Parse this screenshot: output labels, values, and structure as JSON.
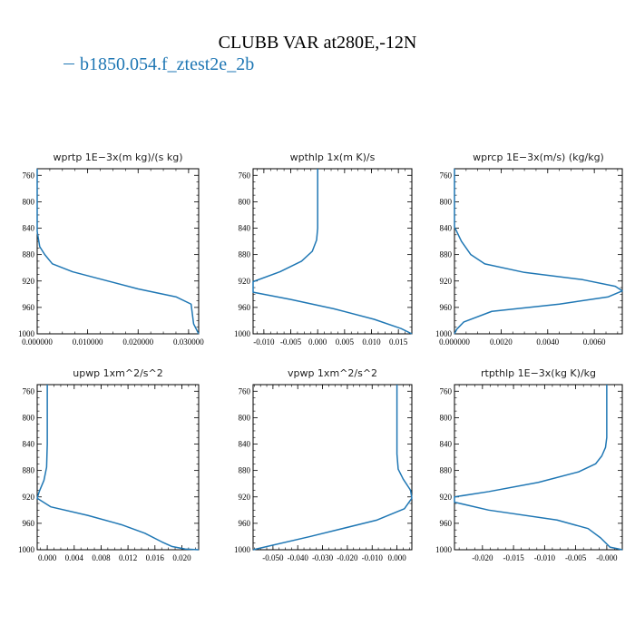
{
  "title": "CLUBB VAR at280E,-12N",
  "legend": [
    {
      "label": "b1850.054.f_ztest2e_2b",
      "color": "#1f77b4"
    }
  ],
  "chart_data": [
    {
      "type": "line",
      "title": "wprtp  1E−3x(m kg)/(s kg)",
      "xlim": [
        0,
        0.032
      ],
      "xticks": [
        0,
        0.01,
        0.02,
        0.03
      ],
      "xtick_labels": [
        "0.000000",
        "0.010000",
        "0.020000",
        "0.030000"
      ],
      "ylim": [
        1000,
        750
      ],
      "yticks": [
        760,
        800,
        840,
        880,
        920,
        960,
        1000
      ],
      "ytick_labels": [
        "760",
        "800",
        "840",
        "880",
        "920",
        "960",
        "1000"
      ],
      "series": [
        {
          "x": [
            0,
            0,
            0.0005,
            0.0015,
            0.003,
            0.007,
            0.013,
            0.02,
            0.0275,
            0.0305,
            0.031,
            0.032
          ],
          "y": [
            750,
            845,
            868,
            880,
            894,
            906,
            918,
            932,
            944,
            955,
            985,
            1000
          ]
        }
      ]
    },
    {
      "type": "line",
      "title": "wpthlp  1x(m K)/s",
      "xlim": [
        -0.012,
        0.0175
      ],
      "xticks": [
        -0.01,
        -0.005,
        0,
        0.005,
        0.01,
        0.015
      ],
      "xtick_labels": [
        "-0.010",
        "-0.005",
        "0.000",
        "0.005",
        "0.010",
        "0.015"
      ],
      "ylim": [
        1000,
        750
      ],
      "yticks": [
        760,
        800,
        840,
        880,
        920,
        960,
        1000
      ],
      "ytick_labels": [
        "760",
        "800",
        "840",
        "880",
        "920",
        "960",
        "1000"
      ],
      "series": [
        {
          "x": [
            0,
            0,
            -0.0002,
            -0.001,
            -0.003,
            -0.007,
            -0.012,
            -0.012,
            -0.005,
            0.003,
            0.0105,
            0.0155,
            0.0175
          ],
          "y": [
            750,
            840,
            858,
            875,
            890,
            906,
            921,
            937,
            948,
            962,
            978,
            992,
            1000
          ]
        }
      ]
    },
    {
      "type": "line",
      "title": "wprcp  1E−3x(m/s) (kg/kg)",
      "xlim": [
        0,
        0.0072
      ],
      "xticks": [
        0,
        0.002,
        0.004,
        0.006
      ],
      "xtick_labels": [
        "0.000000",
        "0.0020",
        "0.0040",
        "0.0060"
      ],
      "ylim": [
        1000,
        750
      ],
      "yticks": [
        760,
        800,
        840,
        880,
        920,
        960,
        1000
      ],
      "ytick_labels": [
        "760",
        "800",
        "840",
        "880",
        "920",
        "960",
        "1000"
      ],
      "series": [
        {
          "x": [
            0,
            0,
            0.0003,
            0.0007,
            0.0013,
            0.003,
            0.0055,
            0.0069,
            0.0072,
            0.0066,
            0.0045,
            0.0016,
            0.0004,
            0.0001,
            0
          ],
          "y": [
            750,
            838,
            860,
            880,
            894,
            907,
            918,
            928,
            935,
            944,
            955,
            966,
            982,
            993,
            1000
          ]
        }
      ]
    },
    {
      "type": "line",
      "title": "upwp  1xm^2/s^2",
      "xlim": [
        -0.0015,
        0.0225
      ],
      "xticks": [
        0,
        0.004,
        0.008,
        0.012,
        0.016,
        0.02
      ],
      "xtick_labels": [
        "0.000",
        "0.004",
        "0.008",
        "0.012",
        "0.016",
        "0.020"
      ],
      "ylim": [
        1000,
        750
      ],
      "yticks": [
        760,
        800,
        840,
        880,
        920,
        960,
        1000
      ],
      "ytick_labels": [
        "760",
        "800",
        "840",
        "880",
        "920",
        "960",
        "1000"
      ],
      "series": [
        {
          "x": [
            0,
            0,
            -0.0001,
            -0.0005,
            -0.0012,
            -0.0015,
            0.0005,
            0.006,
            0.011,
            0.0145,
            0.017,
            0.0185,
            0.0205,
            0.0225
          ],
          "y": [
            750,
            840,
            875,
            895,
            912,
            922,
            935,
            948,
            962,
            975,
            988,
            995,
            999,
            1000
          ]
        }
      ]
    },
    {
      "type": "line",
      "title": "vpwp  1xm^2/s^2",
      "xlim": [
        -0.058,
        0.006
      ],
      "xticks": [
        -0.05,
        -0.04,
        -0.03,
        -0.02,
        -0.01,
        0
      ],
      "xtick_labels": [
        "-0.050",
        "-0.040",
        "-0.030",
        "-0.020",
        "-0.010",
        "0.000"
      ],
      "ylim": [
        1000,
        750
      ],
      "yticks": [
        760,
        800,
        840,
        880,
        920,
        960,
        1000
      ],
      "ytick_labels": [
        "760",
        "800",
        "840",
        "880",
        "920",
        "960",
        "1000"
      ],
      "series": [
        {
          "x": [
            0,
            0,
            0.0005,
            0.0025,
            0.0055,
            0.006,
            0.003,
            -0.008,
            -0.035,
            -0.058
          ],
          "y": [
            750,
            855,
            878,
            893,
            910,
            922,
            938,
            955,
            980,
            1000
          ]
        }
      ]
    },
    {
      "type": "line",
      "title": "rtpthlp  1E−3x(kg K)/kg",
      "xlim": [
        -0.0245,
        0.0025
      ],
      "xticks": [
        -0.02,
        -0.015,
        -0.01,
        -0.005,
        0
      ],
      "xtick_labels": [
        "-0.020",
        "-0.015",
        "-0.010",
        "-0.005",
        "-0.000"
      ],
      "ylim": [
        1000,
        750
      ],
      "yticks": [
        760,
        800,
        840,
        880,
        920,
        960,
        1000
      ],
      "ytick_labels": [
        "760",
        "800",
        "840",
        "880",
        "920",
        "960",
        "1000"
      ],
      "series": [
        {
          "x": [
            0,
            0,
            -0.0002,
            -0.0008,
            -0.0018,
            -0.0045,
            -0.011,
            -0.019,
            -0.0245,
            -0.0245,
            -0.019,
            -0.008,
            -0.003,
            -0.001,
            0.0005,
            0.0025
          ],
          "y": [
            750,
            830,
            845,
            858,
            870,
            882,
            898,
            912,
            920,
            928,
            940,
            955,
            968,
            982,
            996,
            1000
          ]
        }
      ]
    }
  ]
}
